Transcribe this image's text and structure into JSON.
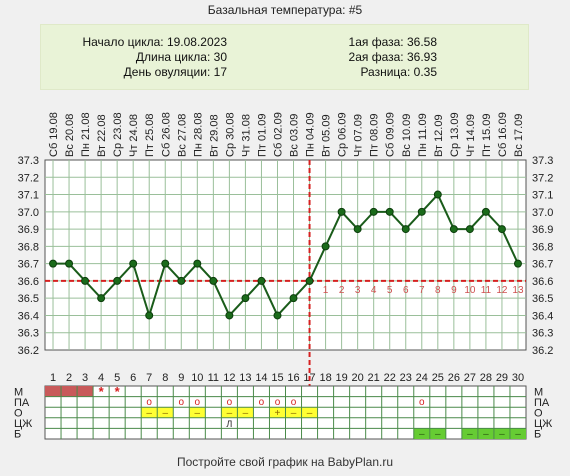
{
  "title": "Базальная температура: #5",
  "info": {
    "cycle_start_label": "Начало цикла:",
    "cycle_start": "19.08.2023",
    "cycle_length_label": "Длина цикла:",
    "cycle_length": "30",
    "ovulation_day_label": "День овуляции:",
    "ovulation_day": "17",
    "phase1_label": "1ая фаза:",
    "phase1": "36.58",
    "phase2_label": "2ая фаза:",
    "phase2": "36.93",
    "diff_label": "Разница:",
    "diff": "0.35"
  },
  "footer": "Постройте свой график на BabyPlan.ru",
  "colors": {
    "line": "#1a5c1a",
    "point": "#1a6b1a",
    "ref_line": "#d62020",
    "grid": "#9abf9a",
    "menses": "#c85a5a",
    "yellow": "#ffff33",
    "green": "#66cc33",
    "row_marker": "#d62020"
  },
  "chart_data": {
    "type": "line",
    "ylim": [
      36.2,
      37.3
    ],
    "yticks": [
      "37.3",
      "37.2",
      "37.1",
      "37.0",
      "36.9",
      "36.8",
      "36.7",
      "36.6",
      "36.5",
      "36.4",
      "36.3",
      "36.2"
    ],
    "dates": [
      "Сб 19.08",
      "Вс 20.08",
      "Пн 21.08",
      "Вт 22.08",
      "Ср 23.08",
      "Чт 24.08",
      "Пт 25.08",
      "Сб 26.08",
      "Вс 27.08",
      "Пн 28.08",
      "Вт 29.08",
      "Ср 30.08",
      "Чт 31.08",
      "Пт 01.09",
      "Сб 02.09",
      "Вс 03.09",
      "Пн 04.09",
      "Вт 05.09",
      "Ср 06.09",
      "Чт 07.09",
      "Пт 08.09",
      "Сб 09.09",
      "Вс 10.09",
      "Пн 11.09",
      "Вт 12.09",
      "Ср 13.09",
      "Чт 14.09",
      "Пт 15.09",
      "Сб 16.09",
      "Вс 17.09"
    ],
    "days": [
      "1",
      "2",
      "3",
      "4",
      "5",
      "6",
      "7",
      "8",
      "9",
      "10",
      "11",
      "12",
      "13",
      "14",
      "15",
      "16",
      "17",
      "18",
      "19",
      "20",
      "21",
      "22",
      "23",
      "24",
      "25",
      "26",
      "27",
      "28",
      "29",
      "30"
    ],
    "values": [
      36.7,
      36.7,
      36.6,
      36.5,
      36.6,
      36.7,
      36.4,
      36.7,
      36.6,
      36.7,
      36.6,
      36.4,
      36.5,
      36.6,
      36.4,
      36.5,
      36.6,
      36.8,
      37.0,
      36.9,
      37.0,
      37.0,
      36.9,
      37.0,
      37.1,
      36.9,
      36.9,
      37.0,
      36.9,
      36.7
    ],
    "reference_level": 36.6,
    "ovulation_day": 17,
    "phase2_day_numbers": [
      "1",
      "2",
      "3",
      "4",
      "5",
      "6",
      "7",
      "8",
      "9",
      "10",
      "11",
      "12",
      "13"
    ],
    "grid": true
  },
  "table": {
    "row_labels": [
      "М",
      "ПА",
      "О",
      "ЦЖ",
      "Б"
    ],
    "menses_days": [
      1,
      2,
      3
    ],
    "star_days": [
      4,
      5
    ],
    "star_symbol": "*",
    "pa_circle_days": [
      7,
      9,
      10,
      12,
      14,
      15,
      16,
      24
    ],
    "circle_symbol": "o",
    "o_cells": [
      {
        "day": 7,
        "sym": "–"
      },
      {
        "day": 8,
        "sym": "–"
      },
      {
        "day": 10,
        "sym": "–"
      },
      {
        "day": 12,
        "sym": "–"
      },
      {
        "day": 13,
        "sym": "–"
      },
      {
        "day": 15,
        "sym": "+"
      },
      {
        "day": 16,
        "sym": "–"
      },
      {
        "day": 17,
        "sym": "–"
      }
    ],
    "cz_cells": [
      {
        "day": 12,
        "sym": "Л"
      }
    ],
    "b_days": [
      24,
      25,
      27,
      28,
      29,
      30
    ],
    "b_symbol": "–"
  }
}
